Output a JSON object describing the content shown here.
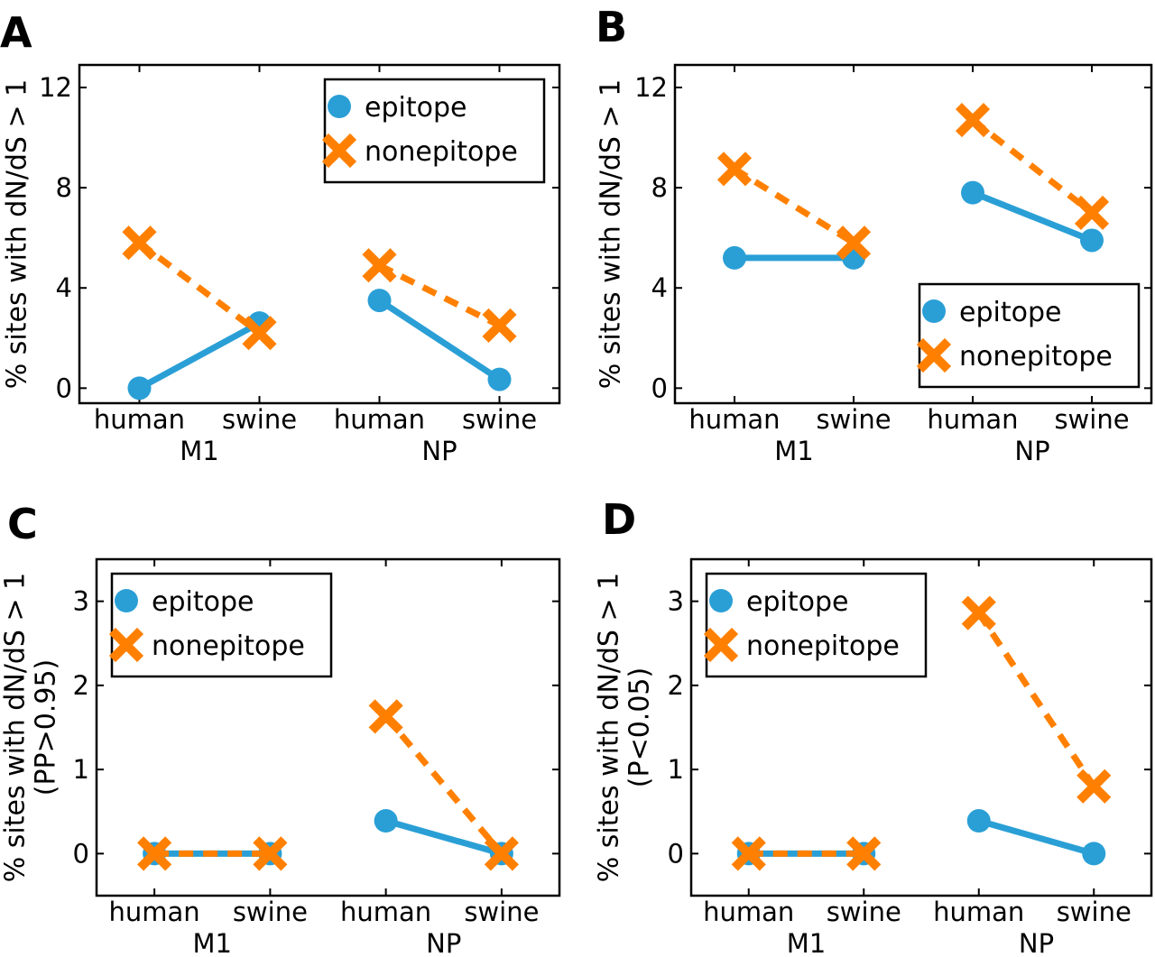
{
  "colors": {
    "epitope": "#2a9fd6",
    "nonepitope": "#ff8000"
  },
  "chart_data": [
    {
      "type": "line",
      "panel_label": "A",
      "ylabel": [
        "% sites with dN/dS > 1"
      ],
      "categories": [
        "human",
        "swine",
        "human",
        "swine"
      ],
      "groups": [
        "M1",
        "NP"
      ],
      "ylim": [
        -0.6,
        12.9
      ],
      "yticks": [
        0,
        4,
        8,
        12
      ],
      "legend": "top-right",
      "series": [
        {
          "name": "epitope",
          "marker": "circle",
          "linestyle": "solid",
          "values": [
            [
              0.0,
              2.6
            ],
            [
              3.5,
              0.35
            ]
          ]
        },
        {
          "name": "nonepitope",
          "marker": "x",
          "linestyle": "dashed",
          "values": [
            [
              5.8,
              2.2
            ],
            [
              4.9,
              2.5
            ]
          ]
        }
      ]
    },
    {
      "type": "line",
      "panel_label": "B",
      "ylabel": [
        "% sites with dN/dS > 1"
      ],
      "categories": [
        "human",
        "swine",
        "human",
        "swine"
      ],
      "groups": [
        "M1",
        "NP"
      ],
      "ylim": [
        -0.6,
        12.9
      ],
      "yticks": [
        0,
        4,
        8,
        12
      ],
      "legend": "lower-right",
      "series": [
        {
          "name": "epitope",
          "marker": "circle",
          "linestyle": "solid",
          "values": [
            [
              5.2,
              5.2
            ],
            [
              7.8,
              5.9
            ]
          ]
        },
        {
          "name": "nonepitope",
          "marker": "x",
          "linestyle": "dashed",
          "values": [
            [
              8.75,
              5.8
            ],
            [
              10.7,
              7.0
            ]
          ]
        }
      ]
    },
    {
      "type": "line",
      "panel_label": "C",
      "ylabel": [
        "% sites with dN/dS > 1",
        "(PP>0.95)"
      ],
      "categories": [
        "human",
        "swine",
        "human",
        "swine"
      ],
      "groups": [
        "M1",
        "NP"
      ],
      "ylim": [
        -0.5,
        3.5
      ],
      "yticks": [
        0,
        1,
        2,
        3
      ],
      "legend": "top-left",
      "series": [
        {
          "name": "epitope",
          "marker": "circle",
          "linestyle": "solid",
          "values": [
            [
              0,
              0
            ],
            [
              0.39,
              0
            ]
          ]
        },
        {
          "name": "nonepitope",
          "marker": "x",
          "linestyle": "dashed",
          "values": [
            [
              0,
              0
            ],
            [
              1.63,
              0
            ]
          ]
        }
      ]
    },
    {
      "type": "line",
      "panel_label": "D",
      "ylabel": [
        "% sites with dN/dS > 1",
        "(P<0.05)"
      ],
      "categories": [
        "human",
        "swine",
        "human",
        "swine"
      ],
      "groups": [
        "M1",
        "NP"
      ],
      "ylim": [
        -0.5,
        3.5
      ],
      "yticks": [
        0,
        1,
        2,
        3
      ],
      "legend": "top-left",
      "series": [
        {
          "name": "epitope",
          "marker": "circle",
          "linestyle": "solid",
          "values": [
            [
              0,
              0
            ],
            [
              0.39,
              0
            ]
          ]
        },
        {
          "name": "nonepitope",
          "marker": "x",
          "linestyle": "dashed",
          "values": [
            [
              0,
              0
            ],
            [
              2.86,
              0.8
            ]
          ]
        }
      ]
    }
  ]
}
